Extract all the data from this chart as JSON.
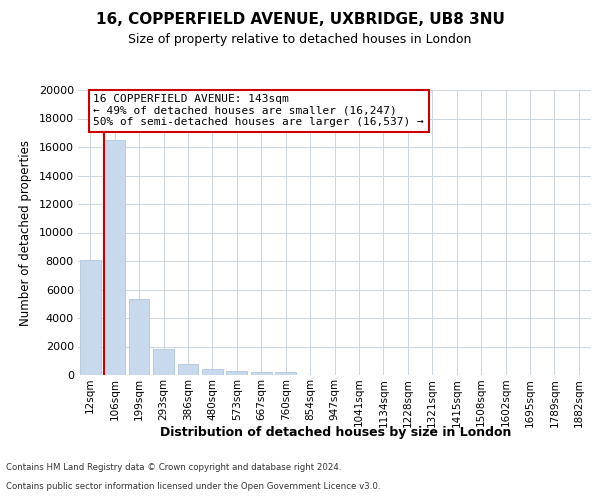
{
  "title1": "16, COPPERFIELD AVENUE, UXBRIDGE, UB8 3NU",
  "title2": "Size of property relative to detached houses in London",
  "xlabel": "Distribution of detached houses by size in London",
  "ylabel": "Number of detached properties",
  "footer1": "Contains HM Land Registry data © Crown copyright and database right 2024.",
  "footer2": "Contains public sector information licensed under the Open Government Licence v3.0.",
  "property_label": "16 COPPERFIELD AVENUE: 143sqm",
  "annotation_line1": "← 49% of detached houses are smaller (16,247)",
  "annotation_line2": "50% of semi-detached houses are larger (16,537) →",
  "bar_color": "#c8d9ed",
  "marker_color": "#cc0000",
  "annotation_box_color": "#cc0000",
  "categories": [
    "12sqm",
    "106sqm",
    "199sqm",
    "293sqm",
    "386sqm",
    "480sqm",
    "573sqm",
    "667sqm",
    "760sqm",
    "854sqm",
    "947sqm",
    "1041sqm",
    "1134sqm",
    "1228sqm",
    "1321sqm",
    "1415sqm",
    "1508sqm",
    "1602sqm",
    "1695sqm",
    "1789sqm",
    "1882sqm"
  ],
  "values": [
    8100,
    16500,
    5350,
    1800,
    780,
    400,
    260,
    200,
    180,
    0,
    0,
    0,
    0,
    0,
    0,
    0,
    0,
    0,
    0,
    0,
    0
  ],
  "ylim": [
    0,
    20000
  ],
  "yticks": [
    0,
    2000,
    4000,
    6000,
    8000,
    10000,
    12000,
    14000,
    16000,
    18000,
    20000
  ],
  "marker_bar_index": 1,
  "bg_color": "#ffffff",
  "grid_color": "#ccd6e0"
}
